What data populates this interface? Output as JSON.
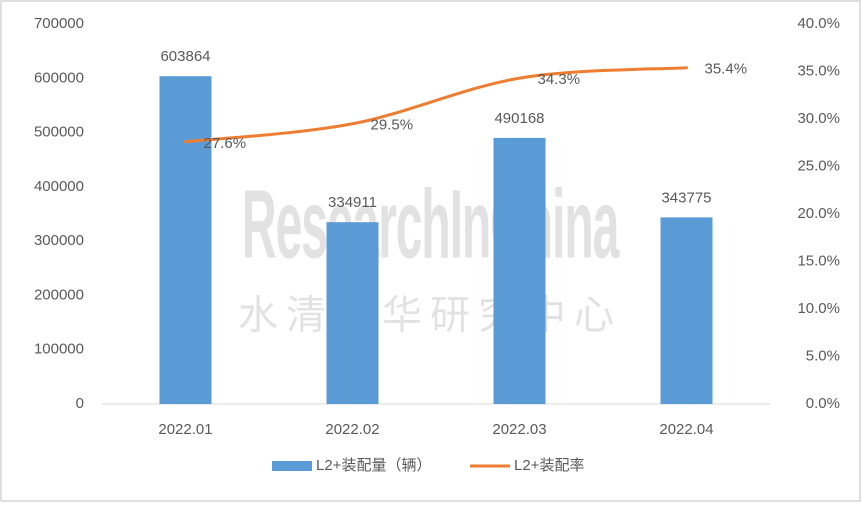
{
  "chart_data": {
    "type": "bar-line",
    "categories": [
      "2022.01",
      "2022.02",
      "2022.03",
      "2022.04"
    ],
    "series": [
      {
        "name": "L2+装配量（辆）",
        "color": "#5b9bd5",
        "type": "bar",
        "values": [
          603864,
          334911,
          490168,
          343775
        ]
      },
      {
        "name": "L2+装配率",
        "color": "#ed7d31",
        "type": "line",
        "axis": "y2",
        "values": [
          27.6,
          29.5,
          34.3,
          35.4
        ],
        "value_labels": [
          "27.6%",
          "29.5%",
          "34.3%",
          "35.4%"
        ]
      }
    ],
    "ylim": [
      0,
      700000
    ],
    "yticks": [
      0,
      100000,
      200000,
      300000,
      400000,
      500000,
      600000,
      700000
    ],
    "y2lim": [
      0,
      40
    ],
    "y2ticks": [
      {
        "value": 0,
        "label": "0.0%"
      },
      {
        "value": 5,
        "label": "5.0%"
      },
      {
        "value": 10,
        "label": "10.0%"
      },
      {
        "value": 15,
        "label": "15.0%"
      },
      {
        "value": 20,
        "label": "20.0%"
      },
      {
        "value": 25,
        "label": "25.0%"
      },
      {
        "value": 30,
        "label": "30.0%"
      },
      {
        "value": 35,
        "label": "35.0%"
      },
      {
        "value": 40,
        "label": "40.0%"
      }
    ],
    "grid": false,
    "legend": "bottom",
    "watermark": "ResearchInChina",
    "watermark_cn": "水清木华研究中心"
  }
}
